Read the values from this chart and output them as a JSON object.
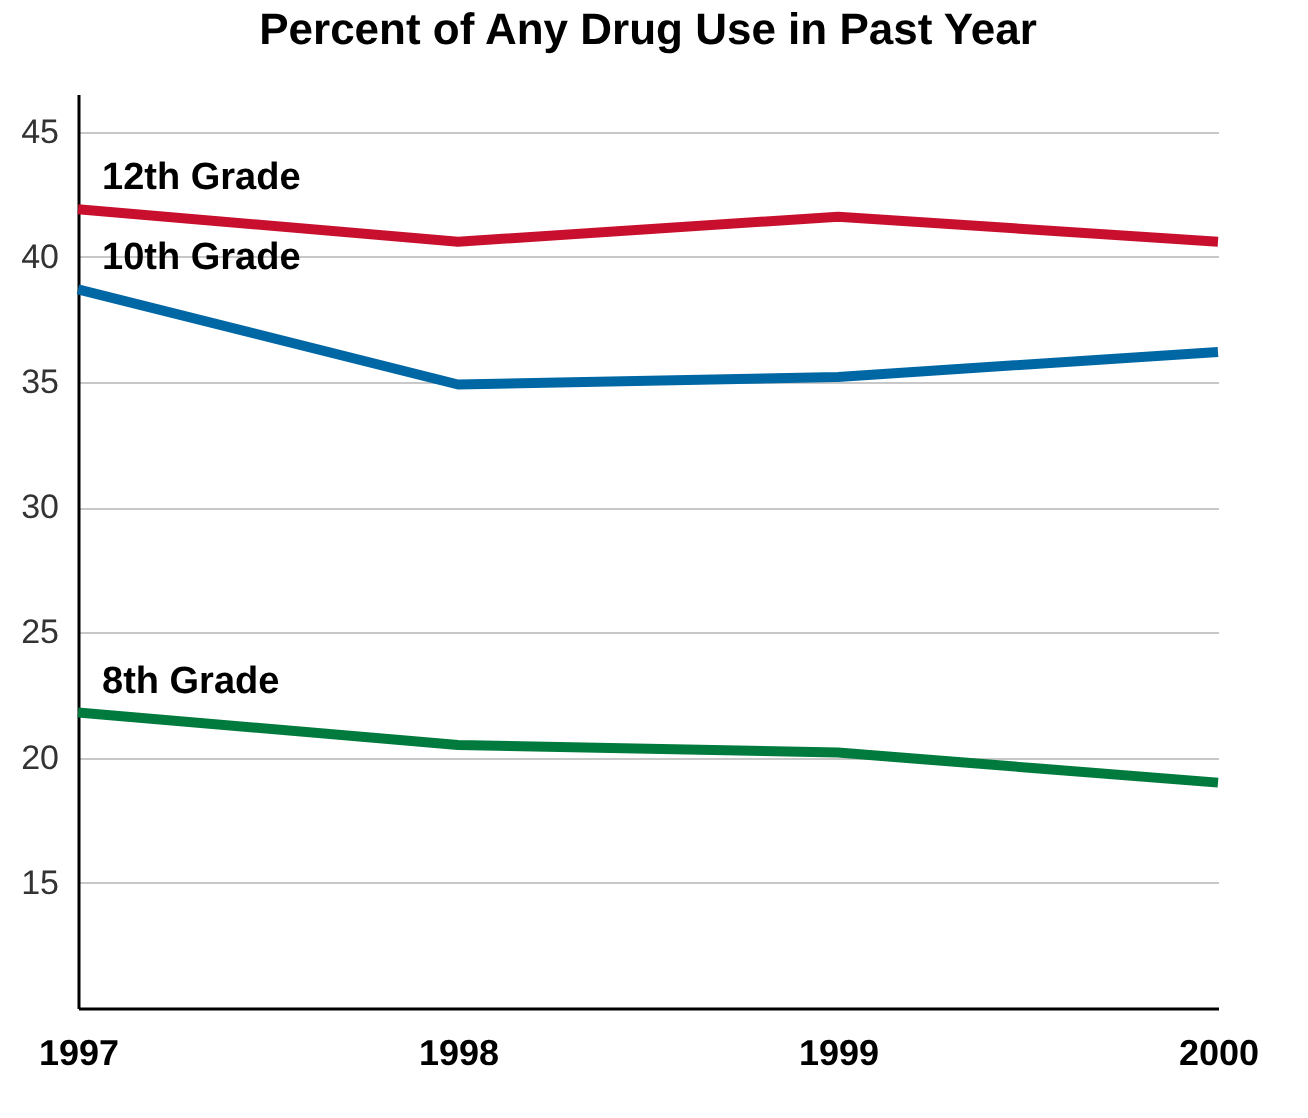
{
  "chart_data": {
    "type": "line",
    "title": "Percent of Any Drug Use in Past Year",
    "categories": [
      "1997",
      "1998",
      "1999",
      "2000"
    ],
    "series": [
      {
        "name": "12th Grade",
        "color": "#c8102e",
        "values": [
          41.9,
          40.6,
          41.6,
          40.6
        ]
      },
      {
        "name": "10th Grade",
        "color": "#0067a5",
        "values": [
          38.7,
          34.9,
          35.2,
          36.2
        ]
      },
      {
        "name": "8th Grade",
        "color": "#007a3d",
        "values": [
          21.8,
          20.5,
          20.2,
          19.0
        ]
      }
    ],
    "ylim": [
      10,
      46.5
    ],
    "yticks": [
      15,
      20,
      25,
      30,
      35,
      40,
      45
    ],
    "grid": "y",
    "legend": false,
    "marker": "none",
    "line_style": "solid"
  }
}
